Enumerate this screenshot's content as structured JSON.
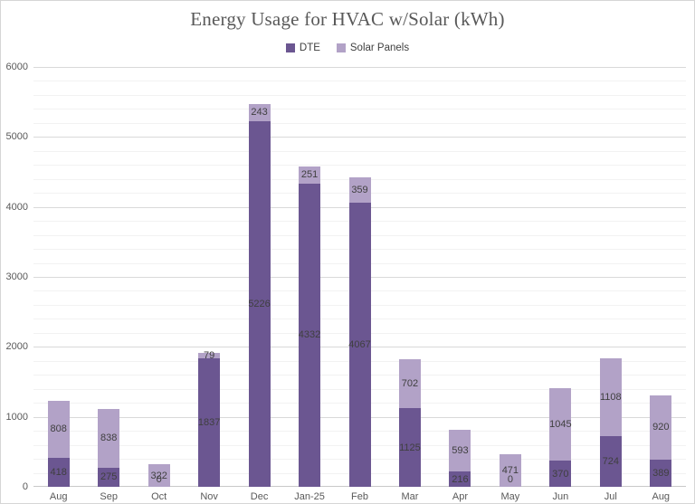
{
  "chart_data": {
    "type": "bar",
    "stacked": true,
    "title": "Energy Usage for HVAC w/Solar (kWh)",
    "categories": [
      "Aug",
      "Sep",
      "Oct",
      "Nov",
      "Dec",
      "Jan-25",
      "Feb",
      "Mar",
      "Apr",
      "May",
      "Jun",
      "Jul",
      "Aug"
    ],
    "series": [
      {
        "name": "DTE",
        "color": "#6b5691",
        "values": [
          418,
          275,
          0,
          1837,
          5226,
          4332,
          4067,
          1125,
          216,
          0,
          370,
          724,
          389
        ]
      },
      {
        "name": "Solar Panels",
        "color": "#b2a2c7",
        "values": [
          808,
          838,
          322,
          79,
          243,
          251,
          359,
          702,
          593,
          471,
          1045,
          1108,
          920
        ]
      }
    ],
    "data_labels_shown": true,
    "xlabel": "",
    "ylabel": "",
    "ylim": [
      0,
      6000
    ],
    "y_major_step": 1000,
    "y_minor_step": 200,
    "y_tick_labels": [
      "0",
      "1000",
      "2000",
      "3000",
      "4000",
      "5000",
      "6000"
    ],
    "grid": "on",
    "legend_position": "top",
    "colors": {
      "title_text": "#595959",
      "axis_text": "#595959",
      "label_text": "#3f3f3f",
      "major_gridline": "#d9d9d9",
      "minor_gridline": "#f2f2f2",
      "background": "#ffffff",
      "border": "#d6d6d6"
    }
  }
}
